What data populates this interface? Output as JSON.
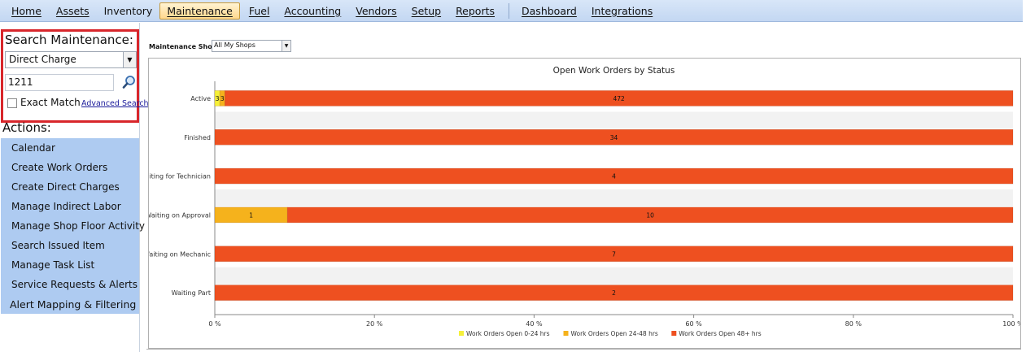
{
  "menubar": {
    "items": [
      "Home",
      "Assets",
      "Inventory",
      "Maintenance",
      "Fuel",
      "Accounting",
      "Vendors",
      "Setup",
      "Reports"
    ],
    "items_right": [
      "Dashboard",
      "Integrations"
    ],
    "active": "Maintenance"
  },
  "search": {
    "title": "Search Maintenance:",
    "type_value": "Direct Charge",
    "query_value": "1211",
    "exact_match_label": "Exact Match",
    "exact_match_checked": false,
    "advanced_link": "Advanced Search",
    "search_icon": "magnifier-icon"
  },
  "actions": {
    "title": "Actions:",
    "items": [
      "Calendar",
      "Create Work Orders",
      "Create Direct Charges",
      "Manage Indirect Labor",
      "Manage Shop Floor Activity",
      "Search Issued Item",
      "Manage Task List",
      "Service Requests & Alerts",
      "Alert Mapping & Filtering"
    ]
  },
  "shop_filter": {
    "label": "Maintenance Shop:",
    "value": "All My Shops"
  },
  "chart_data": {
    "type": "bar",
    "orientation": "horizontal",
    "stacked": "percent",
    "title": "Open Work Orders by Status",
    "categories": [
      "Active",
      "Finished",
      "Waiting for Technician",
      "Waiting on Approval",
      "Waiting on Mechanic",
      "Waiting Part"
    ],
    "series": [
      {
        "name": "Work Orders Open 0-24 hrs",
        "color": "#f5f03a",
        "values": [
          3,
          0,
          0,
          0,
          0,
          0
        ]
      },
      {
        "name": "Work Orders Open 24-48 hrs",
        "color": "#f5b21c",
        "values": [
          3,
          0,
          0,
          1,
          0,
          0
        ]
      },
      {
        "name": "Work Orders Open 48+ hrs",
        "color": "#ee5020",
        "values": [
          472,
          34,
          4,
          10,
          7,
          2
        ]
      }
    ],
    "xticks": [
      "0 %",
      "20 %",
      "40 %",
      "60 %",
      "80 %",
      "100 %"
    ],
    "xlim": [
      0,
      100
    ],
    "legend_position": "bottom"
  }
}
